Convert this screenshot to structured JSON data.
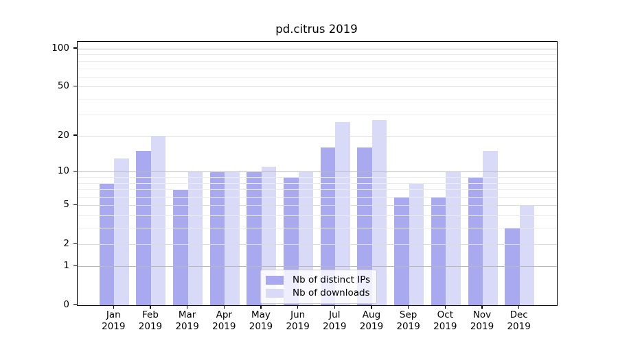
{
  "chart_data": {
    "type": "bar",
    "title": "pd.citrus 2019",
    "categories": [
      "Jan 2019",
      "Feb 2019",
      "Mar 2019",
      "Apr 2019",
      "May 2019",
      "Jun 2019",
      "Jul 2019",
      "Aug 2019",
      "Sep 2019",
      "Oct 2019",
      "Nov 2019",
      "Dec 2019"
    ],
    "series": [
      {
        "name": "Nb of distinct IPs",
        "color": "#a9a9f0",
        "values": [
          8,
          15,
          7,
          10,
          10,
          9,
          16,
          16,
          6,
          6,
          9,
          3
        ]
      },
      {
        "name": "Nb of downloads",
        "color": "#d9d9f8",
        "values": [
          13,
          20,
          10,
          10,
          11,
          10,
          26,
          27,
          8,
          10,
          15,
          5
        ]
      }
    ],
    "xlabel": "",
    "ylabel": "",
    "y_scale": "log1p",
    "y_ticks_labeled": [
      100,
      50,
      20,
      10,
      5,
      2,
      1,
      0
    ],
    "y_gridlines_major": [
      1,
      10,
      100
    ],
    "y_gridlines_mid": [
      2,
      5,
      20,
      50
    ],
    "y_gridlines_minor": [
      3,
      4,
      6,
      7,
      8,
      9,
      30,
      40,
      60,
      70,
      80,
      90
    ],
    "ylim": [
      0,
      114
    ],
    "grid": "both, drawn above bars",
    "legend_position": "inside lower-center"
  },
  "colors": {
    "background": "#ffffff",
    "axis": "#000000",
    "grid_major": "#b9b9b9",
    "grid_mid": "#dcdcdc",
    "grid_minor": "#ebebeb",
    "legend_border": "#cccccc"
  }
}
